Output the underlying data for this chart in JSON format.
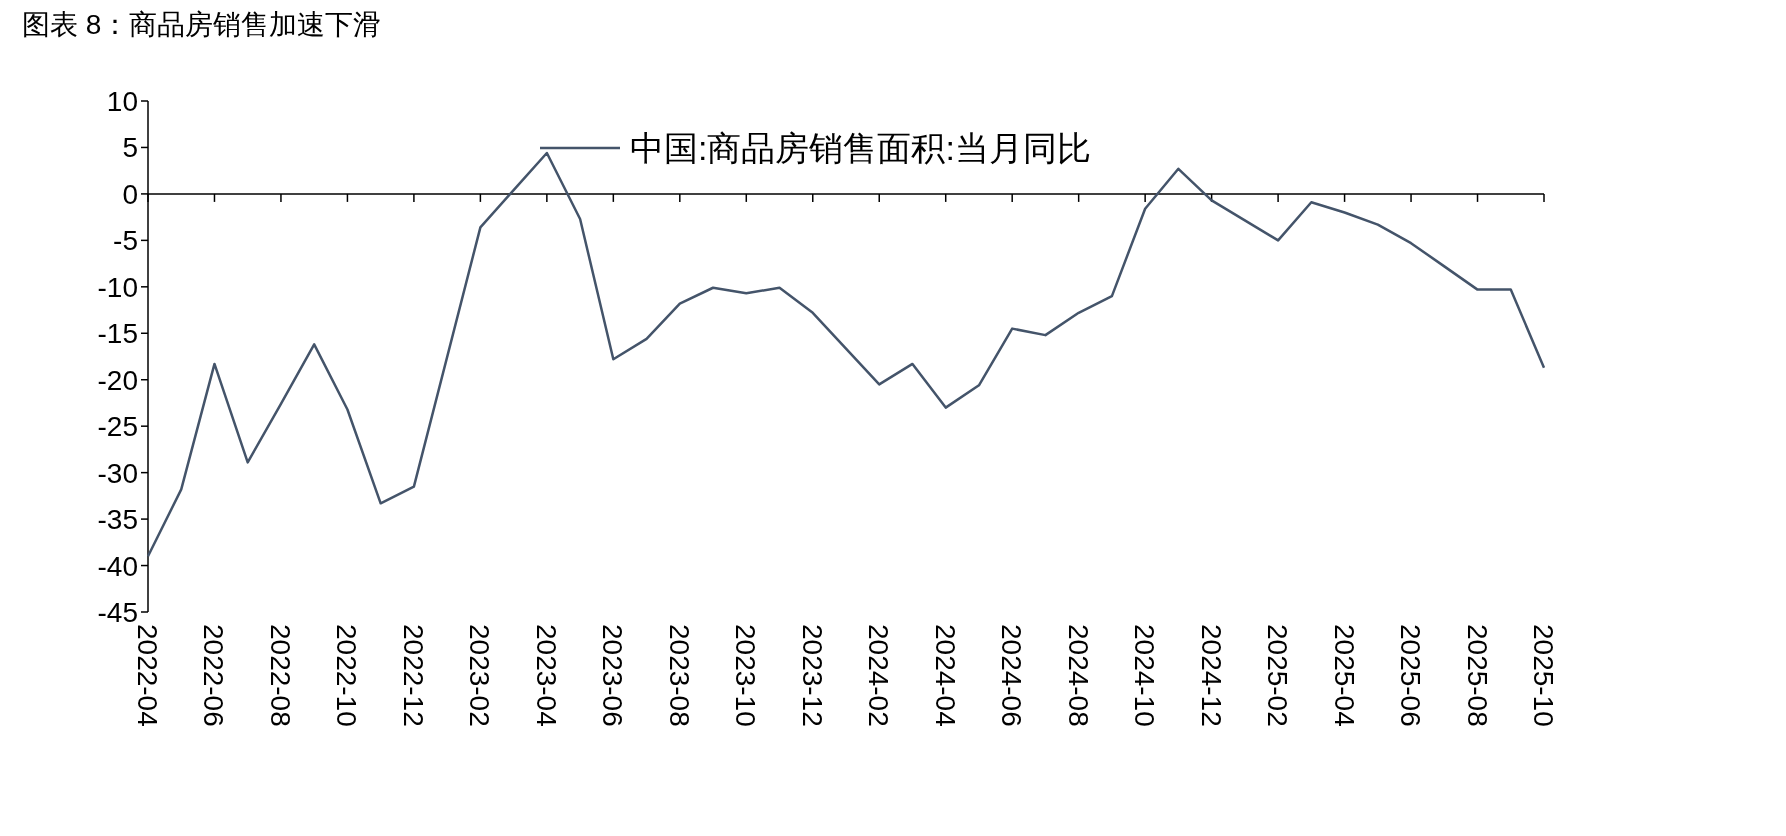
{
  "chart_data": {
    "type": "line",
    "title": "图表 8：商品房销售加速下滑",
    "legend": "top",
    "x": [
      "2022-04",
      "2022-05",
      "2022-06",
      "2022-07",
      "2022-08",
      "2022-09",
      "2022-10",
      "2022-11",
      "2022-12",
      "2023-02",
      "2023-03",
      "2023-04",
      "2023-05",
      "2023-06",
      "2023-07",
      "2023-08",
      "2023-09",
      "2023-10",
      "2023-11",
      "2023-12",
      "2024-02",
      "2024-03",
      "2024-04",
      "2024-05",
      "2024-06",
      "2024-07",
      "2024-08",
      "2024-09",
      "2024-10",
      "2024-11",
      "2024-12",
      "2025-02",
      "2025-03",
      "2025-04",
      "2025-05",
      "2025-06",
      "2025-07",
      "2025-08",
      "2025-09",
      "2025-10"
    ],
    "series": [
      {
        "name": "中国:商品房销售面积:当月同比",
        "color": "#44546a",
        "values": [
          -39,
          -31.8,
          -18.3,
          -28.9,
          -22.6,
          -16.2,
          -23.2,
          -33.3,
          -31.5,
          -3.6,
          0.4,
          4.4,
          -2.7,
          -17.8,
          -15.6,
          -11.8,
          -10.1,
          -10.7,
          -10.1,
          -12.8,
          -20.5,
          -18.3,
          -23,
          -20.6,
          -14.5,
          -15.2,
          -12.8,
          -11,
          -1.6,
          2.7,
          -0.7,
          -5,
          -0.9,
          -2,
          -3.3,
          -5.3,
          -7.8,
          -10.3,
          -10.3,
          -18.7
        ]
      }
    ],
    "xlim": [
      "2022-04",
      "2025-10"
    ],
    "xticks": [
      "2022-04",
      "2022-06",
      "2022-08",
      "2022-10",
      "2022-12",
      "2023-02",
      "2023-04",
      "2023-06",
      "2023-08",
      "2023-10",
      "2023-12",
      "2024-02",
      "2024-04",
      "2024-06",
      "2024-08",
      "2024-10",
      "2024-12",
      "2025-02",
      "2025-04",
      "2025-06",
      "2025-08",
      "2025-10"
    ],
    "ylim": [
      -45,
      10
    ],
    "yticks": [
      -45,
      -40,
      -35,
      -30,
      -25,
      -20,
      -15,
      -10,
      -5,
      0,
      5,
      10
    ]
  }
}
